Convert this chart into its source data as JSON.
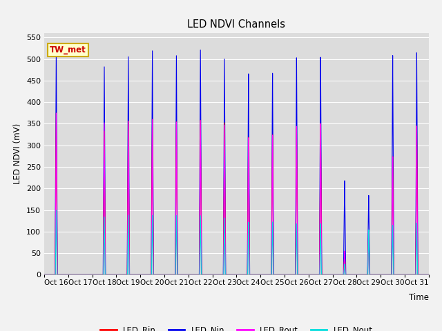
{
  "title": "LED NDVI Channels",
  "xlabel": "Time",
  "ylabel": "LED NDVI (mV)",
  "ylim": [
    0,
    560
  ],
  "yticks": [
    0,
    50,
    100,
    150,
    200,
    250,
    300,
    350,
    400,
    450,
    500,
    550
  ],
  "fig_bg": "#f2f2f2",
  "plot_bg": "#dcdcdc",
  "legend_bg": "#ffffff",
  "annotation_text": "TW_met",
  "annotation_bg": "#ffffcc",
  "annotation_border": "#ccaa00",
  "annotation_text_color": "#cc0000",
  "colors": {
    "LED_Rin": "#ff0000",
    "LED_Nin": "#0000ee",
    "LED_Rout": "#ff00ff",
    "LED_Nout": "#00dddd"
  },
  "x_labels": [
    "Oct 16",
    "Oct 17",
    "Oct 18",
    "Oct 19",
    "Oct 20",
    "Oct 21",
    "Oct 22",
    "Oct 23",
    "Oct 24",
    "Oct 25",
    "Oct 26",
    "Oct 27",
    "Oct 28",
    "Oct 29",
    "Oct 30",
    "Oct 31"
  ],
  "peaks_Nin": [
    520,
    0,
    485,
    510,
    525,
    515,
    530,
    510,
    475,
    475,
    510,
    510,
    220,
    185,
    510,
    515
  ],
  "peaks_Rin": [
    375,
    0,
    335,
    360,
    365,
    360,
    365,
    360,
    325,
    330,
    345,
    355,
    55,
    100,
    275,
    345
  ],
  "peaks_Rout": [
    375,
    0,
    355,
    360,
    365,
    360,
    365,
    355,
    325,
    330,
    350,
    355,
    55,
    100,
    275,
    345
  ],
  "peaks_Nout": [
    150,
    0,
    135,
    140,
    140,
    140,
    140,
    135,
    125,
    125,
    120,
    120,
    25,
    105,
    115,
    120
  ],
  "legend_entries": [
    "LED_Rin",
    "LED_Nin",
    "LED_Rout",
    "LED_Nout"
  ]
}
